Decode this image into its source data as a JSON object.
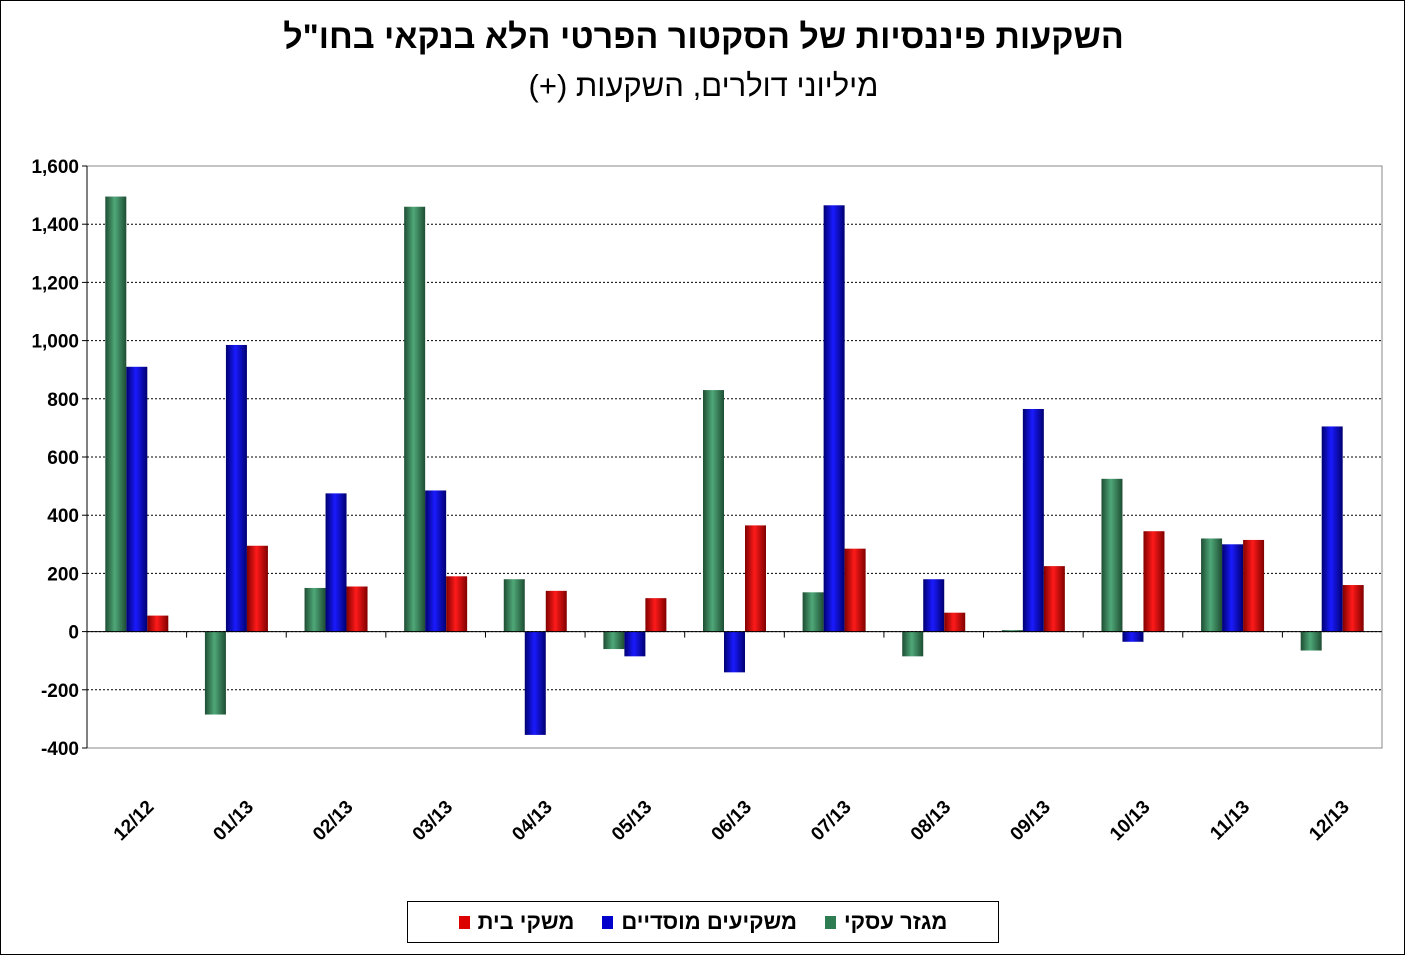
{
  "title": "השקעות פיננסיות של הסקטור הפרטי הלא בנקאי בחו\"ל",
  "subtitle": "מיליוני דולרים, השקעות (+)",
  "colors": {
    "business": "#2e7d52",
    "institutional": "#0000cc",
    "households": "#dd0000"
  },
  "chart_data": {
    "type": "bar",
    "title": "השקעות פיננסיות של הסקטור הפרטי הלא בנקאי בחו\"ל",
    "subtitle": "מיליוני דולרים, השקעות (+)",
    "categories": [
      "12/12",
      "01/13",
      "02/13",
      "03/13",
      "04/13",
      "05/13",
      "06/13",
      "07/13",
      "08/13",
      "09/13",
      "10/13",
      "11/13",
      "12/13"
    ],
    "series": [
      {
        "name": "מגזר עסקי",
        "values": [
          1495,
          -285,
          150,
          1460,
          180,
          -60,
          830,
          135,
          -85,
          5,
          525,
          320,
          -65
        ]
      },
      {
        "name": "משקיעים מוסדיים",
        "values": [
          910,
          985,
          475,
          485,
          -355,
          -85,
          -140,
          1465,
          180,
          765,
          -35,
          300,
          705
        ]
      },
      {
        "name": "משקי בית",
        "values": [
          55,
          295,
          155,
          190,
          140,
          115,
          365,
          285,
          65,
          225,
          345,
          315,
          160
        ]
      }
    ],
    "yticks": [
      "1,600",
      "1,400",
      "1,200",
      "1,000",
      "800",
      "600",
      "400",
      "200",
      "0",
      "-200",
      "-400"
    ],
    "ylim": [
      -400,
      1600
    ],
    "grid": true,
    "legend_position": "bottom"
  }
}
